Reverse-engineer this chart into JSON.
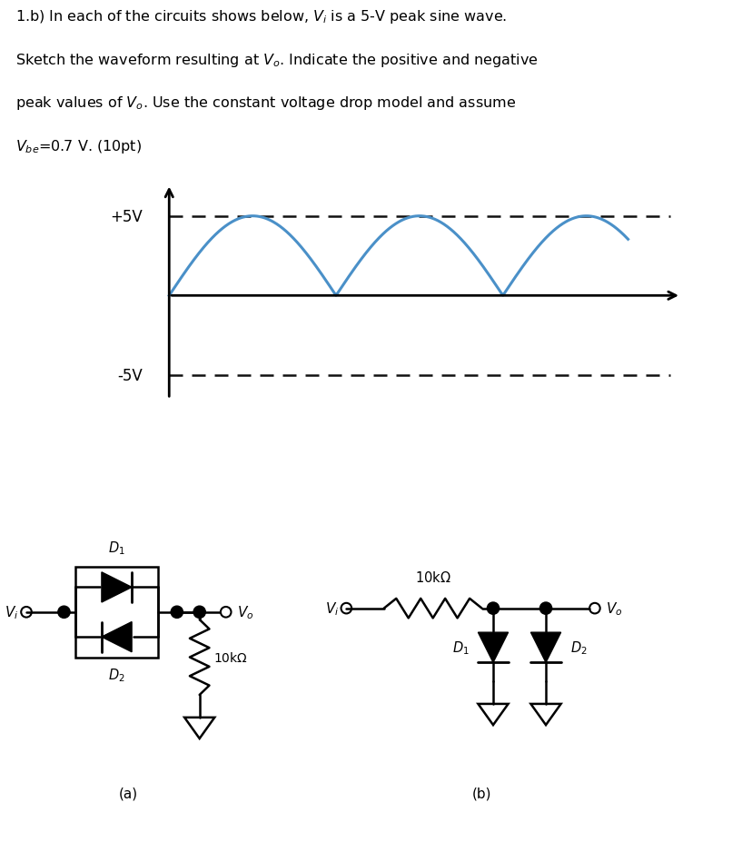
{
  "wave_color": "#4a90c8",
  "wave_amplitude": 5,
  "plus5v_label": "+5V",
  "minus5v_label": "-5V",
  "dashed_color": "#111111",
  "axis_color": "#000000",
  "bg_color": "#ffffff",
  "text_lines": [
    "1.b) In each of the circuits shows below, $V_i$ is a 5-V peak sine wave.",
    "Sketch the waveform resulting at $V_o$. Indicate the positive and negative",
    "peak values of $V_o$. Use the constant voltage drop model and assume",
    "$V_{be}$=0.7 V. (10pt)"
  ]
}
